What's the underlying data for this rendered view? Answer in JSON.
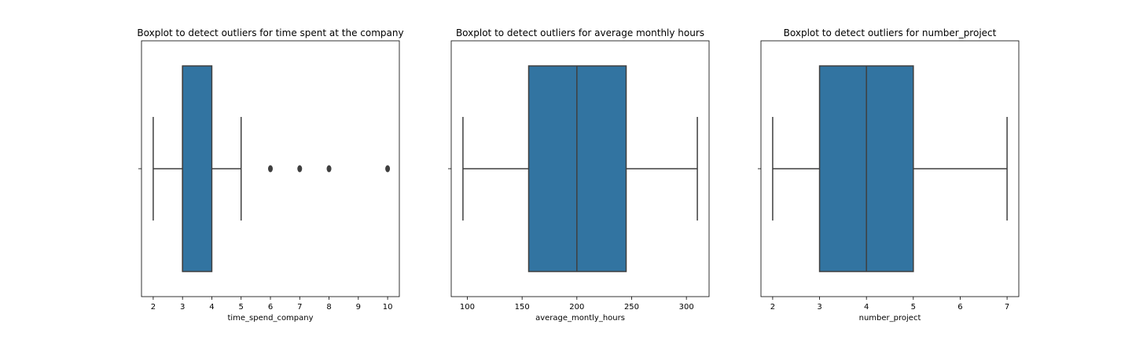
{
  "chart_data": [
    {
      "type": "box",
      "title": "Boxplot to detect outliers for time spent at the company",
      "xlabel": "time_spend_company",
      "ylabel": "",
      "xlim": [
        1.6,
        10.4
      ],
      "xticks": [
        2,
        3,
        4,
        5,
        6,
        7,
        8,
        9,
        10
      ],
      "grid": false,
      "legend": "none",
      "color": "#3274a1",
      "box": {
        "whisker_low": 2,
        "q1": 3,
        "median": 3,
        "q3": 4,
        "whisker_high": 5
      },
      "outliers": [
        6,
        7,
        8,
        10
      ]
    },
    {
      "type": "box",
      "title": "Boxplot to detect outliers for average monthly hours",
      "xlabel": "average_montly_hours",
      "ylabel": "",
      "xlim": [
        85.3,
        320.7
      ],
      "xticks": [
        100,
        150,
        200,
        250,
        300
      ],
      "grid": false,
      "legend": "none",
      "color": "#3274a1",
      "box": {
        "whisker_low": 96,
        "q1": 156,
        "median": 200,
        "q3": 245,
        "whisker_high": 310
      },
      "outliers": []
    },
    {
      "type": "box",
      "title": "Boxplot to detect outliers for number_project",
      "xlabel": "number_project",
      "ylabel": "",
      "xlim": [
        1.75,
        7.25
      ],
      "xticks": [
        2,
        3,
        4,
        5,
        6,
        7
      ],
      "grid": false,
      "legend": "none",
      "color": "#3274a1",
      "box": {
        "whisker_low": 2,
        "q1": 3,
        "median": 4,
        "q3": 5,
        "whisker_high": 7
      },
      "outliers": []
    }
  ]
}
